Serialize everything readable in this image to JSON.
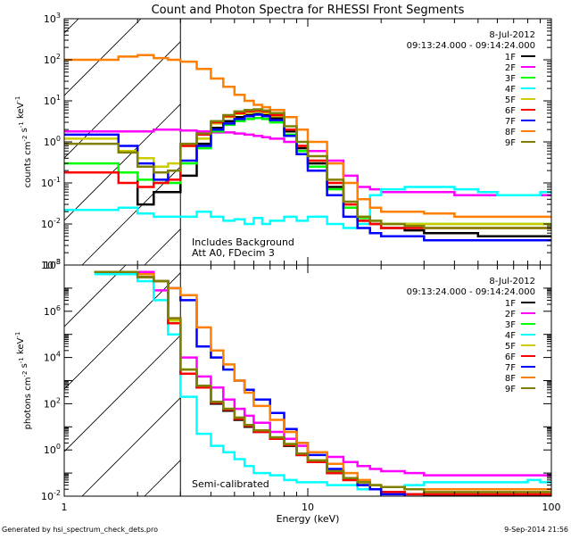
{
  "chart_data": [
    {
      "type": "line",
      "panel": "counts",
      "title": "Count and Photon Spectra for RHESSI Front Segments",
      "xlabel": "",
      "ylabel": "counts cm^-2 s^-1 keV^-1",
      "xscale": "log",
      "yscale": "log",
      "xlim": [
        1,
        100
      ],
      "ylim": [
        0.001,
        1000
      ],
      "ytick_labels": [
        "10^-3",
        "10^-2",
        "10^-1",
        "10^0",
        "10^1",
        "10^2",
        "10^3"
      ],
      "date": "8-Jul-2012",
      "time_range": "09:13:24.000 - 09:14:24.000",
      "annotations": [
        "Includes Background",
        "Att A0, FDecim 3"
      ],
      "hatch_region_keV": [
        1,
        3
      ],
      "legend": "top-right",
      "x": [
        1.0,
        1.33,
        1.67,
        2.0,
        2.33,
        2.67,
        3.0,
        3.5,
        4.0,
        4.5,
        5.0,
        5.5,
        6.0,
        6.5,
        7.0,
        8.0,
        9.0,
        10.0,
        12.0,
        14.0,
        16.0,
        18.0,
        20.0,
        25.0,
        30.0,
        40.0,
        50.0,
        60.0,
        70.0,
        80.0,
        90.0,
        100.0
      ],
      "series": [
        {
          "name": "1F",
          "color": "#000000",
          "values": [
            0.18,
            0.18,
            0.18,
            0.03,
            0.06,
            0.06,
            0.15,
            0.9,
            2.2,
            3.2,
            4.0,
            4.5,
            4.8,
            4.5,
            3.8,
            1.8,
            0.7,
            0.3,
            0.08,
            0.025,
            0.012,
            0.01,
            0.008,
            0.007,
            0.006,
            0.006,
            0.005,
            0.005,
            0.005,
            0.005,
            0.005,
            0.005
          ]
        },
        {
          "name": "2F",
          "color": "#ff00ff",
          "values": [
            1.8,
            1.8,
            1.8,
            1.8,
            2.0,
            2.0,
            1.9,
            1.8,
            1.7,
            1.7,
            1.6,
            1.5,
            1.4,
            1.3,
            1.2,
            1.0,
            0.8,
            0.6,
            0.35,
            0.15,
            0.08,
            0.07,
            0.06,
            0.06,
            0.06,
            0.05,
            0.05,
            0.05,
            0.05,
            0.05,
            0.05,
            0.05
          ]
        },
        {
          "name": "3F",
          "color": "#00ff00",
          "values": [
            0.3,
            0.3,
            0.18,
            0.12,
            0.1,
            0.1,
            0.3,
            0.7,
            1.8,
            2.6,
            3.2,
            3.6,
            3.8,
            3.6,
            3.0,
            1.5,
            0.6,
            0.25,
            0.07,
            0.025,
            0.014,
            0.012,
            0.01,
            0.01,
            0.01,
            0.01,
            0.01,
            0.01,
            0.01,
            0.01,
            0.01,
            0.01
          ]
        },
        {
          "name": "4F",
          "color": "#00ffff",
          "values": [
            0.022,
            0.022,
            0.025,
            0.018,
            0.015,
            0.015,
            0.015,
            0.02,
            0.015,
            0.012,
            0.013,
            0.01,
            0.014,
            0.01,
            0.012,
            0.015,
            0.012,
            0.015,
            0.01,
            0.008,
            0.01,
            0.05,
            0.07,
            0.08,
            0.08,
            0.07,
            0.06,
            0.05,
            0.05,
            0.05,
            0.06,
            0.05
          ]
        },
        {
          "name": "5F",
          "color": "#cccc00",
          "values": [
            1.2,
            1.2,
            0.6,
            0.4,
            0.25,
            0.3,
            0.8,
            1.2,
            2.8,
            4.0,
            4.8,
            5.2,
            5.5,
            5.0,
            4.2,
            2.0,
            0.8,
            0.35,
            0.1,
            0.03,
            0.015,
            0.012,
            0.01,
            0.01,
            0.01,
            0.01,
            0.01,
            0.01,
            0.01,
            0.01,
            0.01,
            0.01
          ]
        },
        {
          "name": "6F",
          "color": "#ff0000",
          "values": [
            0.18,
            0.18,
            0.1,
            0.08,
            0.1,
            0.12,
            0.8,
            1.5,
            3.0,
            4.2,
            5.0,
            5.6,
            5.8,
            5.5,
            4.5,
            2.0,
            0.8,
            0.35,
            0.1,
            0.03,
            0.012,
            0.01,
            0.008,
            0.008,
            0.008,
            0.008,
            0.008,
            0.008,
            0.008,
            0.008,
            0.008,
            0.008
          ]
        },
        {
          "name": "7F",
          "color": "#0000ff",
          "values": [
            1.5,
            1.5,
            0.8,
            0.3,
            0.12,
            0.2,
            0.35,
            0.8,
            2.0,
            2.8,
            3.6,
            4.2,
            4.6,
            4.2,
            3.4,
            1.4,
            0.5,
            0.2,
            0.05,
            0.015,
            0.008,
            0.006,
            0.005,
            0.005,
            0.004,
            0.004,
            0.004,
            0.004,
            0.004,
            0.004,
            0.004,
            0.004
          ]
        },
        {
          "name": "8F",
          "color": "#ff8000",
          "values": [
            100,
            100,
            120,
            130,
            110,
            100,
            90,
            60,
            35,
            22,
            14,
            10,
            8,
            7,
            6,
            4,
            2.0,
            1.0,
            0.3,
            0.1,
            0.04,
            0.025,
            0.02,
            0.02,
            0.018,
            0.015,
            0.015,
            0.015,
            0.015,
            0.015,
            0.015,
            0.015
          ]
        },
        {
          "name": "9F",
          "color": "#808000",
          "values": [
            0.9,
            0.9,
            0.55,
            0.25,
            0.18,
            0.2,
            0.9,
            1.6,
            3.2,
            4.5,
            5.5,
            6.0,
            6.2,
            5.8,
            5.0,
            2.4,
            1.0,
            0.45,
            0.12,
            0.035,
            0.015,
            0.012,
            0.01,
            0.009,
            0.008,
            0.008,
            0.008,
            0.008,
            0.008,
            0.008,
            0.008,
            0.008
          ]
        }
      ]
    },
    {
      "type": "line",
      "panel": "photons",
      "title": "",
      "xlabel": "Energy (keV)",
      "ylabel": "photons cm^-2 s^-1 keV^-1",
      "xscale": "log",
      "yscale": "log",
      "xlim": [
        1,
        100
      ],
      "ylim": [
        0.01,
        100000000
      ],
      "xtick_labels": [
        "1",
        "10",
        "100"
      ],
      "ytick_labels": [
        "10^-2",
        "10^0",
        "10^2",
        "10^4",
        "10^6",
        "10^8"
      ],
      "date": "8-Jul-2012",
      "time_range": "09:13:24.000 - 09:14:24.000",
      "annotations": [
        "Semi-calibrated"
      ],
      "hatch_region_keV": [
        1,
        3
      ],
      "legend": "top-right",
      "x": [
        1.33,
        1.67,
        2.0,
        2.33,
        2.67,
        3.0,
        3.5,
        4.0,
        4.5,
        5.0,
        5.5,
        6.0,
        7.0,
        8.0,
        9.0,
        10.0,
        12.0,
        14.0,
        16.0,
        18.0,
        20.0,
        25.0,
        30.0,
        40.0,
        50.0,
        60.0,
        70.0,
        80.0,
        90.0,
        100.0
      ],
      "series": [
        {
          "name": "1F",
          "color": "#000000",
          "values": [
            50000000.0,
            50000000.0,
            30000000.0,
            20000000.0,
            300000.0,
            2000.0,
            500,
            100,
            50,
            20,
            10,
            6,
            3,
            1.5,
            0.6,
            0.3,
            0.1,
            0.05,
            0.03,
            0.02,
            0.015,
            0.012,
            0.01,
            0.01,
            0.01,
            0.01,
            0.01,
            0.01,
            0.01,
            0.01
          ]
        },
        {
          "name": "2F",
          "color": "#ff00ff",
          "values": [
            50000000.0,
            50000000.0,
            50000000.0,
            8000000.0,
            500000.0,
            10000.0,
            1500,
            500,
            150,
            60,
            30,
            15,
            6,
            3,
            1.5,
            0.8,
            0.5,
            0.3,
            0.2,
            0.15,
            0.12,
            0.1,
            0.08,
            0.08,
            0.08,
            0.08,
            0.08,
            0.08,
            0.08,
            0.08
          ]
        },
        {
          "name": "3F",
          "color": "#00ff00",
          "values": [
            50000000.0,
            50000000.0,
            30000000.0,
            20000000.0,
            400000.0,
            3000.0,
            600,
            120,
            60,
            25,
            12,
            7,
            3.5,
            1.8,
            0.7,
            0.35,
            0.12,
            0.06,
            0.04,
            0.03,
            0.025,
            0.02,
            0.02,
            0.02,
            0.02,
            0.02,
            0.02,
            0.02,
            0.02,
            0.02
          ]
        },
        {
          "name": "4F",
          "color": "#00ffff",
          "values": [
            40000000.0,
            40000000.0,
            20000000.0,
            3000000.0,
            100000.0,
            200,
            5,
            1.5,
            0.8,
            0.4,
            0.2,
            0.1,
            0.08,
            0.05,
            0.04,
            0.04,
            0.03,
            0.03,
            0.02,
            0.02,
            0.025,
            0.03,
            0.04,
            0.04,
            0.04,
            0.04,
            0.04,
            0.05,
            0.04,
            0.03
          ]
        },
        {
          "name": "5F",
          "color": "#cccc00",
          "values": [
            50000000.0,
            50000000.0,
            40000000.0,
            20000000.0,
            400000.0,
            3000.0,
            600,
            120,
            60,
            25,
            12,
            7,
            3.5,
            1.8,
            0.7,
            0.35,
            0.12,
            0.06,
            0.04,
            0.03,
            0.025,
            0.02,
            0.02,
            0.02,
            0.02,
            0.02,
            0.02,
            0.02,
            0.02,
            0.02
          ]
        },
        {
          "name": "6F",
          "color": "#ff0000",
          "values": [
            50000000.0,
            50000000.0,
            30000000.0,
            20000000.0,
            300000.0,
            2000.0,
            500,
            110,
            55,
            22,
            11,
            6,
            3,
            1.6,
            0.6,
            0.3,
            0.1,
            0.05,
            0.03,
            0.02,
            0.015,
            0.012,
            0.012,
            0.012,
            0.012,
            0.012,
            0.012,
            0.012,
            0.012,
            0.012
          ]
        },
        {
          "name": "7F",
          "color": "#0000ff",
          "values": [
            50000000.0,
            50000000.0,
            40000000.0,
            20000000.0,
            10000000.0,
            3000000.0,
            30000.0,
            10000.0,
            3000,
            1000,
            400,
            150,
            40,
            8,
            2,
            0.6,
            0.15,
            0.06,
            0.03,
            0.02,
            0.012,
            0.008,
            0.006,
            0.006,
            0.006,
            0.006,
            0.006,
            0.006,
            0.006,
            0.006
          ]
        },
        {
          "name": "8F",
          "color": "#ff8000",
          "values": [
            50000000.0,
            50000000.0,
            40000000.0,
            20000000.0,
            10000000.0,
            5000000.0,
            200000.0,
            20000.0,
            5000,
            1000,
            300,
            80,
            20,
            6,
            2,
            0.8,
            0.25,
            0.1,
            0.05,
            0.03,
            0.025,
            0.02,
            0.02,
            0.02,
            0.02,
            0.02,
            0.02,
            0.02,
            0.02,
            0.02
          ]
        },
        {
          "name": "9F",
          "color": "#808000",
          "values": [
            50000000.0,
            50000000.0,
            30000000.0,
            20000000.0,
            500000.0,
            3000.0,
            600,
            120,
            60,
            25,
            12,
            7,
            3.5,
            1.8,
            0.7,
            0.35,
            0.12,
            0.06,
            0.04,
            0.03,
            0.025,
            0.02,
            0.015,
            0.015,
            0.015,
            0.015,
            0.015,
            0.015,
            0.015,
            0.015
          ]
        }
      ]
    }
  ],
  "footer": {
    "generated_by": "Generated by hsi_spectrum_check_dets.pro",
    "date_stamp": "9-Sep-2014 21:56"
  }
}
